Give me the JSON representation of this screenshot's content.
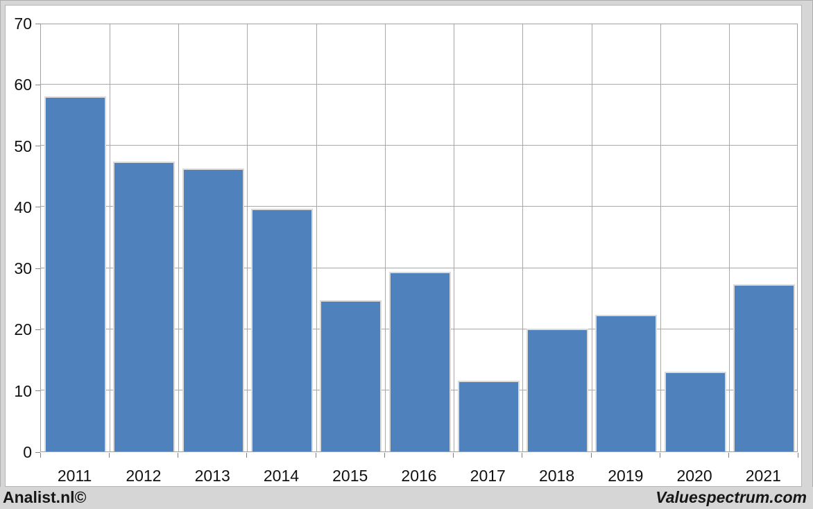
{
  "footer": {
    "left": "Analist.nl©",
    "right": "Valuespectrum.com"
  },
  "chart_data": {
    "type": "bar",
    "title": "",
    "xlabel": "",
    "ylabel": "",
    "categories": [
      "2011",
      "2012",
      "2013",
      "2014",
      "2015",
      "2016",
      "2017",
      "2018",
      "2019",
      "2020",
      "2021"
    ],
    "values": [
      58.0,
      47.3,
      46.2,
      39.7,
      24.7,
      29.3,
      11.6,
      20.1,
      22.3,
      13.0,
      27.3
    ],
    "ylim": [
      0,
      70
    ],
    "yticks": [
      0,
      10,
      20,
      30,
      40,
      50,
      60,
      70
    ],
    "grid": true,
    "legend_position": "none",
    "colors": {
      "bar_fill": "#4f81bd",
      "bar_border": "#dadada",
      "gridline": "#a8a8a8",
      "plot_border": "#a0a0a0",
      "frame_background": "#d6d6d6",
      "panel_background": "#ffffff",
      "text": "#111111"
    }
  }
}
